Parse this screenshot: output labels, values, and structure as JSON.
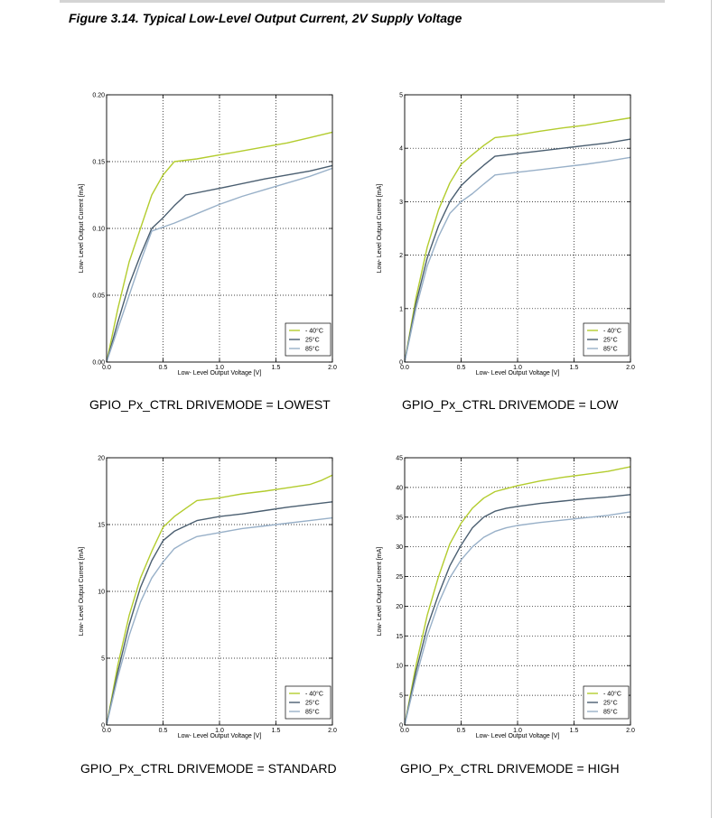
{
  "figure": {
    "title": "Figure 3.14. Typical Low-Level Output Current, 2V Supply Voltage"
  },
  "colors": {
    "minus40": "#b3cc2e",
    "c25": "#4a5e70",
    "c85": "#98b0c8"
  },
  "chart_data": [
    {
      "type": "line",
      "caption": "GPIO_Px_CTRL DRIVEMODE = LOWEST",
      "xlabel": "Low- Level Output Voltage [V]",
      "ylabel": "Low- Level Output Current [mA]",
      "xlim": [
        0,
        2.0
      ],
      "ylim": [
        0,
        0.2
      ],
      "xticks": [
        "0.0",
        "0.5",
        "1.0",
        "1.5",
        "2.0"
      ],
      "yticks": [
        "0.00",
        "0.05",
        "0.10",
        "0.15",
        "0.20"
      ],
      "grid": true,
      "legend_position": "bottom-right",
      "series": [
        {
          "name": "- 40°C",
          "x": [
            0,
            0.1,
            0.2,
            0.3,
            0.4,
            0.5,
            0.6,
            0.8,
            1.0,
            1.2,
            1.4,
            1.6,
            1.8,
            2.0
          ],
          "y": [
            0,
            0.04,
            0.075,
            0.1,
            0.125,
            0.14,
            0.15,
            0.152,
            0.155,
            0.158,
            0.161,
            0.164,
            0.168,
            0.172
          ]
        },
        {
          "name": "25°C",
          "x": [
            0,
            0.1,
            0.2,
            0.3,
            0.4,
            0.5,
            0.6,
            0.7,
            1.0,
            1.4,
            1.8,
            2.0
          ],
          "y": [
            0,
            0.03,
            0.058,
            0.08,
            0.1,
            0.108,
            0.117,
            0.125,
            0.13,
            0.137,
            0.143,
            0.147
          ]
        },
        {
          "name": "85°C",
          "x": [
            0,
            0.1,
            0.2,
            0.3,
            0.4,
            0.5,
            0.6,
            0.8,
            1.0,
            1.2,
            1.4,
            1.6,
            1.8,
            2.0
          ],
          "y": [
            0,
            0.025,
            0.05,
            0.075,
            0.098,
            0.101,
            0.104,
            0.111,
            0.118,
            0.124,
            0.129,
            0.134,
            0.139,
            0.145
          ]
        }
      ]
    },
    {
      "type": "line",
      "caption": "GPIO_Px_CTRL DRIVEMODE = LOW",
      "xlabel": "Low- Level Output Voltage [V]",
      "ylabel": "Low- Level Output Current [mA]",
      "xlim": [
        0,
        2.0
      ],
      "ylim": [
        0,
        5
      ],
      "xticks": [
        "0.0",
        "0.5",
        "1.0",
        "1.5",
        "2.0"
      ],
      "yticks": [
        "0",
        "1",
        "2",
        "3",
        "4",
        "5"
      ],
      "grid": true,
      "legend_position": "bottom-right",
      "series": [
        {
          "name": "- 40°C",
          "x": [
            0,
            0.1,
            0.2,
            0.3,
            0.4,
            0.5,
            0.6,
            0.7,
            0.8,
            1.0,
            1.2,
            1.4,
            1.6,
            1.8,
            2.0
          ],
          "y": [
            0,
            1.2,
            2.15,
            2.85,
            3.35,
            3.7,
            3.88,
            4.05,
            4.2,
            4.25,
            4.32,
            4.38,
            4.43,
            4.5,
            4.57
          ]
        },
        {
          "name": "25°C",
          "x": [
            0,
            0.1,
            0.2,
            0.3,
            0.4,
            0.5,
            0.6,
            0.7,
            0.8,
            1.0,
            1.2,
            1.4,
            1.6,
            1.8,
            2.0
          ],
          "y": [
            0,
            1.1,
            1.95,
            2.55,
            3.0,
            3.3,
            3.5,
            3.68,
            3.85,
            3.9,
            3.95,
            4.0,
            4.05,
            4.1,
            4.17
          ]
        },
        {
          "name": "85°C",
          "x": [
            0,
            0.1,
            0.2,
            0.3,
            0.4,
            0.5,
            0.6,
            0.7,
            0.8,
            1.0,
            1.2,
            1.4,
            1.6,
            1.8,
            2.0
          ],
          "y": [
            0,
            1.0,
            1.8,
            2.35,
            2.78,
            3.0,
            3.15,
            3.33,
            3.5,
            3.55,
            3.6,
            3.65,
            3.7,
            3.76,
            3.83
          ]
        }
      ]
    },
    {
      "type": "line",
      "caption": "GPIO_Px_CTRL DRIVEMODE = STANDARD",
      "xlabel": "Low- Level Output Voltage [V]",
      "ylabel": "Low- Level Output Current [mA]",
      "xlim": [
        0,
        2.0
      ],
      "ylim": [
        0,
        20
      ],
      "xticks": [
        "0.0",
        "0.5",
        "1.0",
        "1.5",
        "2.0"
      ],
      "yticks": [
        "0",
        "5",
        "10",
        "15",
        "20"
      ],
      "grid": true,
      "legend_position": "bottom-right",
      "series": [
        {
          "name": "- 40°C",
          "x": [
            0,
            0.1,
            0.2,
            0.3,
            0.4,
            0.5,
            0.6,
            0.7,
            0.8,
            1.0,
            1.2,
            1.4,
            1.6,
            1.8,
            1.9,
            2.0
          ],
          "y": [
            0,
            4.5,
            8.2,
            11.0,
            13.0,
            14.8,
            15.6,
            16.2,
            16.8,
            17.0,
            17.3,
            17.5,
            17.75,
            18.0,
            18.3,
            18.7
          ]
        },
        {
          "name": "25°C",
          "x": [
            0,
            0.1,
            0.2,
            0.3,
            0.4,
            0.5,
            0.6,
            0.7,
            0.8,
            1.0,
            1.2,
            1.4,
            1.6,
            1.8,
            2.0
          ],
          "y": [
            0,
            4.0,
            7.5,
            10.3,
            12.3,
            13.8,
            14.5,
            14.9,
            15.3,
            15.6,
            15.8,
            16.05,
            16.3,
            16.5,
            16.7
          ]
        },
        {
          "name": "85°C",
          "x": [
            0,
            0.1,
            0.2,
            0.3,
            0.4,
            0.5,
            0.6,
            0.7,
            0.8,
            1.0,
            1.2,
            1.4,
            1.6,
            1.8,
            2.0
          ],
          "y": [
            0,
            3.6,
            6.7,
            9.2,
            11.0,
            12.2,
            13.2,
            13.7,
            14.1,
            14.4,
            14.7,
            14.9,
            15.1,
            15.3,
            15.5
          ]
        }
      ]
    },
    {
      "type": "line",
      "caption": "GPIO_Px_CTRL DRIVEMODE = HIGH",
      "xlabel": "Low- Level Output Voltage [V]",
      "ylabel": "Low- Level Output Current [mA]",
      "xlim": [
        0,
        2.0
      ],
      "ylim": [
        0,
        45
      ],
      "xticks": [
        "0.0",
        "0.5",
        "1.0",
        "1.5",
        "2.0"
      ],
      "yticks": [
        "0",
        "5",
        "10",
        "15",
        "20",
        "25",
        "30",
        "35",
        "40",
        "45"
      ],
      "grid": true,
      "legend_position": "bottom-right",
      "series": [
        {
          "name": "- 40°C",
          "x": [
            0,
            0.1,
            0.2,
            0.3,
            0.4,
            0.5,
            0.6,
            0.7,
            0.8,
            0.9,
            1.0,
            1.2,
            1.4,
            1.6,
            1.8,
            2.0
          ],
          "y": [
            0,
            10,
            18.5,
            25,
            30.5,
            34,
            36.5,
            38.2,
            39.3,
            39.8,
            40.3,
            41.1,
            41.7,
            42.2,
            42.7,
            43.5
          ]
        },
        {
          "name": "25°C",
          "x": [
            0,
            0.1,
            0.2,
            0.3,
            0.4,
            0.5,
            0.6,
            0.7,
            0.8,
            0.9,
            1.0,
            1.2,
            1.4,
            1.6,
            1.8,
            2.0
          ],
          "y": [
            0,
            9,
            16.5,
            22,
            26.8,
            30.3,
            33.2,
            35.0,
            36.0,
            36.5,
            36.8,
            37.3,
            37.7,
            38.1,
            38.4,
            38.8
          ]
        },
        {
          "name": "85°C",
          "x": [
            0,
            0.1,
            0.2,
            0.3,
            0.4,
            0.5,
            0.6,
            0.7,
            0.8,
            0.9,
            1.0,
            1.2,
            1.4,
            1.6,
            1.8,
            2.0
          ],
          "y": [
            0,
            8,
            15,
            20.5,
            24.8,
            27.8,
            30.0,
            31.6,
            32.6,
            33.2,
            33.6,
            34.1,
            34.5,
            34.9,
            35.3,
            35.9
          ]
        }
      ]
    }
  ]
}
